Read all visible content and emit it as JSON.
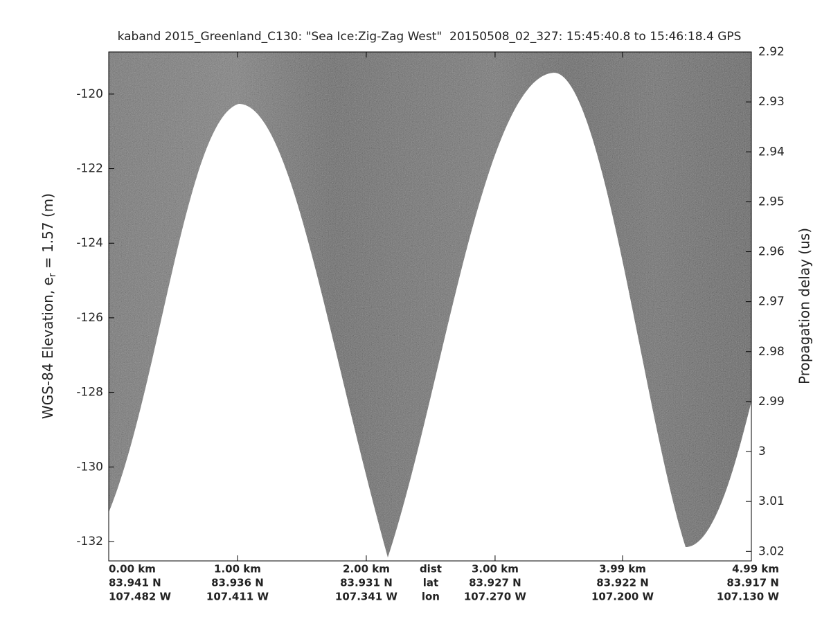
{
  "chart_data": {
    "type": "echogram",
    "title": "kaband 2015_Greenland_C130: \"Sea Ice:Zig-Zag West\"  20150508_02_327: 15:45:40.8 to 15:46:18.4 GPS",
    "ylabel": {
      "text": "WGS-84 Elevation, e",
      "subscript": "r",
      "suffix": " = 1.57 (m)"
    },
    "y2label": "Propagation delay (us)",
    "xlim": [
      0,
      4.99
    ],
    "xticks": [
      {
        "value": 0,
        "label": "0.00 km"
      },
      {
        "value": 1.0,
        "label": "1.00 km"
      },
      {
        "value": 2.0,
        "label": "2.00 km"
      },
      {
        "value": 3.0,
        "label": "3.00 km"
      },
      {
        "value": 3.99,
        "label": "3.99 km"
      },
      {
        "value": 4.99,
        "label": "4.99 km"
      }
    ],
    "xlat": [
      "83.941 N",
      "83.936 N",
      "83.931 N",
      "83.927 N",
      "83.922 N",
      "83.917 N"
    ],
    "xlon": [
      "107.482 W",
      "107.411 W",
      "107.341 W",
      "107.270 W",
      "107.200 W",
      "107.130 W"
    ],
    "row_labels": [
      "dist",
      "lat",
      "lon"
    ],
    "ylim": [
      -132.52,
      -118.87
    ],
    "yticks": [
      -132,
      -130,
      -128,
      -126,
      -124,
      -122,
      -120
    ],
    "y2lim": [
      3.0219,
      2.92
    ],
    "y2ticks": [
      2.92,
      2.93,
      2.94,
      2.95,
      2.96,
      2.97,
      2.98,
      2.99,
      3,
      3.01,
      3.02
    ]
  }
}
